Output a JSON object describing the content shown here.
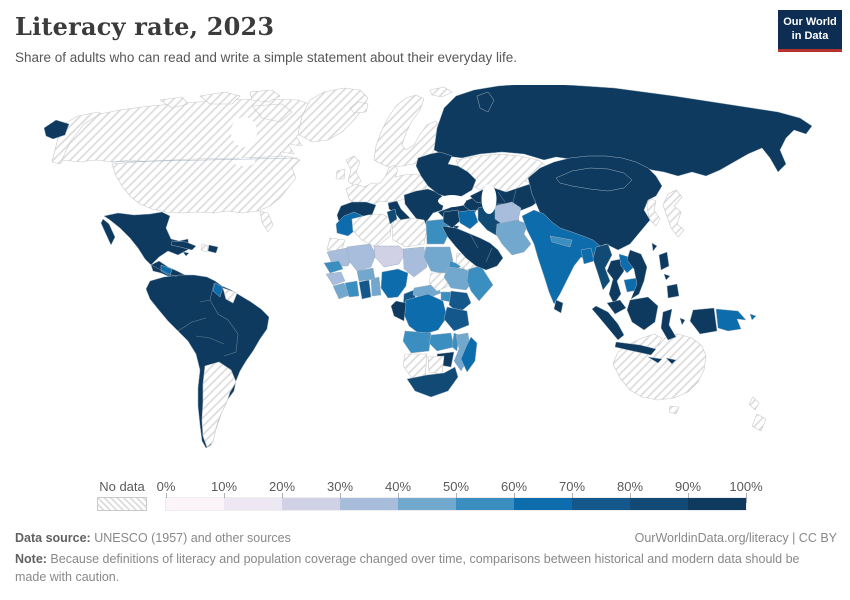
{
  "header": {
    "title": "Literacy rate, 2023",
    "subtitle": "Share of adults who can read and write a simple statement about their everyday life."
  },
  "logo": {
    "line1": "Our World",
    "line2": "in Data",
    "bg_color": "#0d2d52",
    "accent_color": "#b5332c"
  },
  "legend": {
    "no_data_label": "No data",
    "tick_labels": [
      "0%",
      "10%",
      "20%",
      "30%",
      "40%",
      "50%",
      "60%",
      "70%",
      "80%",
      "90%",
      "100%"
    ],
    "bin_colors": [
      "#fdf4f9",
      "#ece7f2",
      "#d1d1e6",
      "#a7bddb",
      "#73a8ce",
      "#3b8ec0",
      "#0d6cac",
      "#14578a",
      "#114a74",
      "#0d3a5e"
    ],
    "hatch_stripe_color": "#dcdcdc",
    "border_color_colored": "#9fb0c0",
    "border_color_nodata": "#c9c9c9"
  },
  "footer": {
    "source_label": "Data source:",
    "source_text": " UNESCO (1957) and other sources",
    "link_text": "OurWorldinData.org/literacy | CC BY",
    "note_label": "Note:",
    "note_text": " Because definitions of literacy and population coverage changed over time, comparisons between historical and modern data should be made with caution."
  },
  "chart_data": {
    "type": "choropleth",
    "title": "Literacy rate, 2023",
    "unit": "%",
    "legend_position": "bottom",
    "bins": [
      {
        "range": "0-10%",
        "color": "#fdf4f9"
      },
      {
        "range": "10-20%",
        "color": "#ece7f2"
      },
      {
        "range": "20-30%",
        "color": "#d1d1e6"
      },
      {
        "range": "30-40%",
        "color": "#a7bddb"
      },
      {
        "range": "40-50%",
        "color": "#73a8ce"
      },
      {
        "range": "50-60%",
        "color": "#3b8ec0"
      },
      {
        "range": "60-70%",
        "color": "#0d6cac"
      },
      {
        "range": "70-80%",
        "color": "#14578a"
      },
      {
        "range": "80-90%",
        "color": "#114a74"
      },
      {
        "range": "90-100%",
        "color": "#0d3a5e"
      }
    ],
    "no_data": {
      "label": "No data",
      "pattern": "diagonal-hatch"
    },
    "regions": {
      "alaska": "no_data",
      "canada": "no_data",
      "usa": "no_data",
      "greenland": "no_data",
      "arctic-islands": "no_data",
      "iceland": "no_data",
      "uk": "no_data",
      "ireland": "no_data",
      "scandinavia": "no_data",
      "western-europe": "no_data",
      "svalbard": "no_data",
      "kazakhstan": "no_data",
      "japan": "no_data",
      "korea": "no_data",
      "australia": "no_data",
      "tasmania": "no_data",
      "new-zealand": "no_data",
      "argentina": "no_data",
      "suriname-guiana": "no_data",
      "haiti": "no_data",
      "western-sahara": "no_data",
      "algeria": "no_data",
      "libya": "no_data",
      "south-sudan": "no_data",
      "namibia": "no_data",
      "botswana": "no_data",
      "yemen": "no_data",
      "russia": 9,
      "chukotka": 9,
      "novaya-zemlya": 9,
      "iberia": 9,
      "italy": 9,
      "sicily": 9,
      "sardinia": 9,
      "balkans": 9,
      "eastern-europe": 9,
      "turkey": 9,
      "cyprus": 9,
      "caucasus": 9,
      "central-asia": 9,
      "china": 9,
      "mongolia": 9,
      "taiwan": 9,
      "hainan": 9,
      "mexico": 9,
      "baja": 9,
      "central-america": 9,
      "cuba": 9,
      "dominican-republic": 9,
      "jamaica": 9,
      "south-america": 9,
      "gabon-congo": 9,
      "zimbabwe": 9,
      "saudi-arabia": 9,
      "levant": 9,
      "indonesia-sumatra": 9,
      "indonesia-java": 9,
      "indonesia-borneo": 9,
      "indonesia-sulawesi": 9,
      "indonesia-papua": 9,
      "lesser-sunda": 9,
      "maluku": 9,
      "malaysia": 9,
      "philippines-luzon": 9,
      "philippines-mindanao": 9,
      "philippines-visayas": 9,
      "vietnam": 9,
      "thailand": 9,
      "sri-lanka": 9,
      "iran": 8,
      "myanmar": 8,
      "south-africa": 8,
      "tunisia": 8,
      "ghana": 7,
      "cameroon": 7,
      "kenya": 7,
      "tanzania": 7,
      "india": 6,
      "bangladesh": 6,
      "nigeria": 6,
      "drc": 6,
      "madagascar": 6,
      "guyana": 6,
      "papua-new-guinea": 6,
      "png-islands": 6,
      "laos": 6,
      "cambodia": 6,
      "iraq": 6,
      "honduras-nicaragua": 6,
      "morocco": 6,
      "egypt": 5,
      "senegal": 5,
      "ivory-coast": 5,
      "angola": 5,
      "uganda": 5,
      "somalia": 5,
      "malawi": 5,
      "zambia": 5,
      "nepal": 5,
      "eritrea": 5,
      "pakistan": 4,
      "sudan": 4,
      "ethiopia": 4,
      "mozambique": 4,
      "burkina-faso": 4,
      "togo-benin": 4,
      "sierra-leone-liberia": 4,
      "central-african-republic": 4,
      "afghanistan": 3,
      "mauritania": 3,
      "mali": 3,
      "chad": 3,
      "guinea": 3,
      "niger": 2
    }
  }
}
